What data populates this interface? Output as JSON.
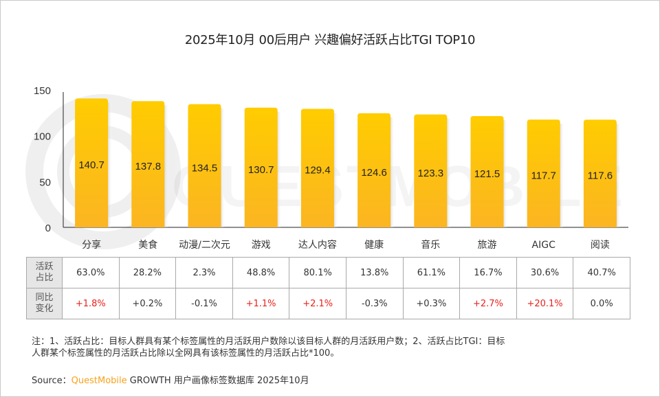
{
  "title": "2025年10月 00后用户 兴趣偏好活跃占比TGI TOP10",
  "colors": {
    "bar_top": "#ffcc00",
    "bar_bottom": "#fbb522",
    "positive_change": "#e8201a",
    "brand": "#f7a21b"
  },
  "watermark": "QUESTMOBILE",
  "chart_data": {
    "type": "bar",
    "title": "2025年10月 00后用户 兴趣偏好活跃占比TGI TOP10",
    "categories": [
      "分享",
      "美食",
      "动漫/二次元",
      "游戏",
      "达人内容",
      "健康",
      "音乐",
      "旅游",
      "AIGC",
      "阅读"
    ],
    "values": [
      140.7,
      137.8,
      134.5,
      130.7,
      129.4,
      124.6,
      123.3,
      121.5,
      117.7,
      117.6
    ],
    "value_labels": [
      "140.7",
      "137.8",
      "134.5",
      "130.7",
      "129.4",
      "124.6",
      "123.3",
      "121.5",
      "117.7",
      "117.6"
    ],
    "ylim": [
      0,
      150
    ],
    "yticks": [
      0,
      50,
      100,
      150
    ],
    "ytick_labels": [
      "0",
      "50",
      "100",
      "150"
    ],
    "xlabel": "",
    "ylabel": "",
    "grid": false
  },
  "table": {
    "rows": [
      {
        "header": [
          "活跃",
          "占比"
        ],
        "cells": [
          "63.0%",
          "28.2%",
          "2.3%",
          "48.8%",
          "80.1%",
          "13.8%",
          "61.1%",
          "16.7%",
          "30.6%",
          "40.7%"
        ],
        "highlight": [
          false,
          false,
          false,
          false,
          false,
          false,
          false,
          false,
          false,
          false
        ]
      },
      {
        "header": [
          "同比",
          "变化"
        ],
        "cells": [
          "+1.8%",
          "+0.2%",
          "-0.1%",
          "+1.1%",
          "+2.1%",
          "-0.3%",
          "+0.3%",
          "+2.7%",
          "+20.1%",
          "0.0%"
        ],
        "highlight": [
          true,
          false,
          false,
          true,
          true,
          false,
          false,
          true,
          true,
          false
        ]
      }
    ]
  },
  "note": {
    "line1": "注：1、活跃占比：目标人群具有某个标签属性的月活跃用户数除以该目标人群的月活跃用户数；2、活跃占比TGI：目标",
    "line2": "人群某个标签属性的月活跃占比除以全网具有该标签属性的月活跃占比*100。"
  },
  "source": {
    "label": "Source：",
    "brand": "QuestMobile",
    "text": " GROWTH 用户画像标签数据库 2025年10月"
  }
}
